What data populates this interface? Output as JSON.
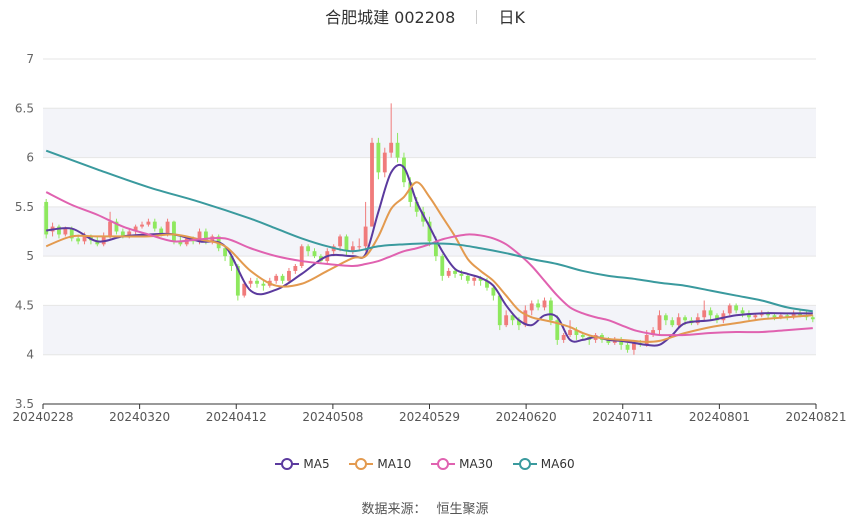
{
  "header": {
    "stock_name": "合肥城建",
    "stock_code": "002208",
    "period": "日K"
  },
  "footer": {
    "source_label": "数据来源：",
    "source_name": "恒生聚源"
  },
  "colors": {
    "up": "#f07b7b",
    "down": "#8ee85e",
    "ma5": "#5b3a9e",
    "ma10": "#e39a4f",
    "ma30": "#e062b0",
    "ma60": "#3a9a9e",
    "band": "#f3f4f9",
    "axis": "#333333"
  },
  "chart_data": {
    "type": "candlestick",
    "title": "合肥城建 002208 日K",
    "ylim": [
      3.5,
      7
    ],
    "yticks": [
      "3.5",
      "4",
      "4.5",
      "5",
      "5.5",
      "6",
      "6.5",
      "7"
    ],
    "xticks": [
      "20240228",
      "20240320",
      "20240412",
      "20240508",
      "20240529",
      "20240620",
      "20240711",
      "20240801",
      "20240821"
    ],
    "legend": [
      "MA5",
      "MA10",
      "MA30",
      "MA60"
    ],
    "legend_position": "bottom",
    "num_days": 121,
    "candles": [
      [
        5.55,
        5.22,
        5.58,
        5.18
      ],
      [
        5.25,
        5.3,
        5.34,
        5.2
      ],
      [
        5.3,
        5.22,
        5.32,
        5.18
      ],
      [
        5.22,
        5.28,
        5.3,
        5.2
      ],
      [
        5.28,
        5.18,
        5.3,
        5.15
      ],
      [
        5.18,
        5.15,
        5.22,
        5.12
      ],
      [
        5.15,
        5.2,
        5.24,
        5.12
      ],
      [
        5.2,
        5.16,
        5.22,
        5.12
      ],
      [
        5.16,
        5.12,
        5.2,
        5.1
      ],
      [
        5.12,
        5.2,
        5.24,
        5.1
      ],
      [
        5.2,
        5.35,
        5.45,
        5.18
      ],
      [
        5.35,
        5.25,
        5.38,
        5.22
      ],
      [
        5.25,
        5.2,
        5.28,
        5.18
      ],
      [
        5.2,
        5.25,
        5.28,
        5.18
      ],
      [
        5.25,
        5.3,
        5.32,
        5.22
      ],
      [
        5.3,
        5.32,
        5.35,
        5.28
      ],
      [
        5.32,
        5.35,
        5.38,
        5.3
      ],
      [
        5.35,
        5.28,
        5.38,
        5.25
      ],
      [
        5.28,
        5.22,
        5.3,
        5.2
      ],
      [
        5.22,
        5.35,
        5.38,
        5.2
      ],
      [
        5.35,
        5.15,
        5.36,
        5.12
      ],
      [
        5.15,
        5.12,
        5.2,
        5.1
      ],
      [
        5.12,
        5.18,
        5.2,
        5.1
      ],
      [
        5.18,
        5.15,
        5.2,
        5.12
      ],
      [
        5.15,
        5.25,
        5.28,
        5.12
      ],
      [
        5.25,
        5.15,
        5.28,
        5.12
      ],
      [
        5.15,
        5.2,
        5.22,
        5.12
      ],
      [
        5.2,
        5.08,
        5.22,
        5.05
      ],
      [
        5.08,
        5.0,
        5.1,
        4.95
      ],
      [
        5.0,
        4.9,
        5.02,
        4.85
      ],
      [
        4.9,
        4.6,
        4.92,
        4.55
      ],
      [
        4.6,
        4.72,
        4.75,
        4.58
      ],
      [
        4.72,
        4.75,
        4.78,
        4.68
      ],
      [
        4.75,
        4.72,
        4.78,
        4.68
      ],
      [
        4.72,
        4.7,
        4.75,
        4.65
      ],
      [
        4.7,
        4.75,
        4.78,
        4.68
      ],
      [
        4.75,
        4.8,
        4.82,
        4.72
      ],
      [
        4.8,
        4.75,
        4.82,
        4.72
      ],
      [
        4.75,
        4.85,
        4.88,
        4.72
      ],
      [
        4.85,
        4.9,
        4.92,
        4.82
      ],
      [
        4.9,
        5.1,
        5.12,
        4.88
      ],
      [
        5.1,
        5.05,
        5.12,
        5.0
      ],
      [
        5.05,
        5.0,
        5.08,
        4.98
      ],
      [
        5.0,
        4.95,
        5.02,
        4.92
      ],
      [
        4.95,
        5.05,
        5.08,
        4.92
      ],
      [
        5.05,
        5.1,
        5.12,
        5.0
      ],
      [
        5.1,
        5.2,
        5.22,
        5.05
      ],
      [
        5.2,
        5.05,
        5.22,
        5.0
      ],
      [
        5.05,
        5.1,
        5.15,
        5.02
      ],
      [
        5.1,
        5.1,
        5.18,
        5.05
      ],
      [
        5.1,
        5.3,
        5.55,
        5.05
      ],
      [
        5.3,
        6.15,
        6.2,
        5.3
      ],
      [
        6.15,
        5.85,
        6.2,
        5.78
      ],
      [
        5.85,
        6.05,
        6.1,
        5.8
      ],
      [
        6.05,
        6.15,
        6.55,
        6.0
      ],
      [
        6.15,
        6.0,
        6.25,
        5.95
      ],
      [
        6.0,
        5.75,
        6.05,
        5.7
      ],
      [
        5.75,
        5.55,
        5.8,
        5.5
      ],
      [
        5.55,
        5.45,
        5.6,
        5.4
      ],
      [
        5.45,
        5.35,
        5.5,
        5.3
      ],
      [
        5.35,
        5.15,
        5.4,
        5.1
      ],
      [
        5.15,
        5.0,
        5.2,
        4.95
      ],
      [
        5.0,
        4.8,
        5.02,
        4.75
      ],
      [
        4.8,
        4.85,
        4.88,
        4.78
      ],
      [
        4.85,
        4.82,
        4.88,
        4.78
      ],
      [
        4.82,
        4.8,
        4.86,
        4.76
      ],
      [
        4.8,
        4.75,
        4.82,
        4.72
      ],
      [
        4.75,
        4.78,
        4.8,
        4.7
      ],
      [
        4.78,
        4.75,
        4.8,
        4.7
      ],
      [
        4.75,
        4.68,
        4.78,
        4.65
      ],
      [
        4.68,
        4.6,
        4.7,
        4.55
      ],
      [
        4.6,
        4.3,
        4.62,
        4.25
      ],
      [
        4.3,
        4.4,
        4.45,
        4.28
      ],
      [
        4.4,
        4.35,
        4.42,
        4.3
      ],
      [
        4.35,
        4.3,
        4.38,
        4.25
      ],
      [
        4.3,
        4.45,
        4.5,
        4.28
      ],
      [
        4.45,
        4.52,
        4.55,
        4.4
      ],
      [
        4.52,
        4.48,
        4.56,
        4.45
      ],
      [
        4.48,
        4.55,
        4.58,
        4.45
      ],
      [
        4.55,
        4.35,
        4.58,
        4.3
      ],
      [
        4.35,
        4.15,
        4.4,
        4.1
      ],
      [
        4.15,
        4.2,
        4.22,
        4.12
      ],
      [
        4.2,
        4.25,
        4.35,
        4.18
      ],
      [
        4.25,
        4.2,
        4.28,
        4.15
      ],
      [
        4.2,
        4.18,
        4.22,
        4.15
      ],
      [
        4.18,
        4.15,
        4.2,
        4.1
      ],
      [
        4.15,
        4.2,
        4.22,
        4.12
      ],
      [
        4.2,
        4.15,
        4.22,
        4.12
      ],
      [
        4.15,
        4.12,
        4.18,
        4.1
      ],
      [
        4.12,
        4.15,
        4.18,
        4.1
      ],
      [
        4.15,
        4.1,
        4.18,
        4.05
      ],
      [
        4.1,
        4.05,
        4.12,
        4.02
      ],
      [
        4.05,
        4.12,
        4.15,
        4.0
      ],
      [
        4.12,
        4.1,
        4.15,
        4.08
      ],
      [
        4.1,
        4.2,
        4.25,
        4.08
      ],
      [
        4.2,
        4.25,
        4.28,
        4.18
      ],
      [
        4.25,
        4.4,
        4.45,
        4.2
      ],
      [
        4.4,
        4.35,
        4.42,
        4.3
      ],
      [
        4.35,
        4.3,
        4.38,
        4.28
      ],
      [
        4.3,
        4.38,
        4.42,
        4.28
      ],
      [
        4.38,
        4.35,
        4.4,
        4.3
      ],
      [
        4.35,
        4.32,
        4.38,
        4.3
      ],
      [
        4.32,
        4.38,
        4.42,
        4.3
      ],
      [
        4.38,
        4.45,
        4.55,
        4.35
      ],
      [
        4.45,
        4.4,
        4.48,
        4.35
      ],
      [
        4.4,
        4.35,
        4.42,
        4.32
      ],
      [
        4.35,
        4.42,
        4.45,
        4.32
      ],
      [
        4.42,
        4.5,
        4.52,
        4.4
      ],
      [
        4.5,
        4.45,
        4.52,
        4.42
      ],
      [
        4.45,
        4.42,
        4.48,
        4.38
      ],
      [
        4.42,
        4.38,
        4.45,
        4.35
      ],
      [
        4.38,
        4.4,
        4.42,
        4.35
      ],
      [
        4.4,
        4.42,
        4.45,
        4.38
      ],
      [
        4.42,
        4.4,
        4.44,
        4.36
      ],
      [
        4.4,
        4.38,
        4.42,
        4.35
      ],
      [
        4.38,
        4.4,
        4.42,
        4.36
      ],
      [
        4.4,
        4.38,
        4.42,
        4.35
      ],
      [
        4.38,
        4.42,
        4.45,
        4.36
      ],
      [
        4.42,
        4.4,
        4.45,
        4.38
      ],
      [
        4.4,
        4.38,
        4.44,
        4.35
      ],
      [
        4.38,
        4.36,
        4.4,
        4.33
      ]
    ],
    "series": [
      {
        "name": "MA5",
        "points": [
          [
            0,
            5.26
          ],
          [
            4,
            5.28
          ],
          [
            8,
            5.15
          ],
          [
            12,
            5.2
          ],
          [
            16,
            5.22
          ],
          [
            20,
            5.22
          ],
          [
            24,
            5.15
          ],
          [
            28,
            5.1
          ],
          [
            32,
            4.65
          ],
          [
            36,
            4.66
          ],
          [
            40,
            4.82
          ],
          [
            44,
            5.0
          ],
          [
            48,
            5.0
          ],
          [
            50,
            5.02
          ],
          [
            52,
            5.45
          ],
          [
            54,
            5.85
          ],
          [
            56,
            5.9
          ],
          [
            58,
            5.55
          ],
          [
            60,
            5.3
          ],
          [
            62,
            5.05
          ],
          [
            64,
            4.87
          ],
          [
            66,
            4.82
          ],
          [
            68,
            4.78
          ],
          [
            70,
            4.7
          ],
          [
            72,
            4.5
          ],
          [
            74,
            4.35
          ],
          [
            76,
            4.3
          ],
          [
            78,
            4.4
          ],
          [
            80,
            4.38
          ],
          [
            82,
            4.15
          ],
          [
            84,
            4.15
          ],
          [
            86,
            4.18
          ],
          [
            88,
            4.15
          ],
          [
            90,
            4.14
          ],
          [
            92,
            4.12
          ],
          [
            94,
            4.1
          ],
          [
            96,
            4.1
          ],
          [
            98,
            4.2
          ],
          [
            100,
            4.32
          ],
          [
            104,
            4.35
          ],
          [
            108,
            4.4
          ],
          [
            112,
            4.42
          ],
          [
            116,
            4.42
          ],
          [
            120,
            4.42
          ]
        ]
      },
      {
        "name": "MA10",
        "points": [
          [
            0,
            5.1
          ],
          [
            4,
            5.2
          ],
          [
            8,
            5.2
          ],
          [
            12,
            5.2
          ],
          [
            16,
            5.2
          ],
          [
            20,
            5.22
          ],
          [
            24,
            5.17
          ],
          [
            28,
            5.1
          ],
          [
            32,
            4.85
          ],
          [
            36,
            4.7
          ],
          [
            40,
            4.72
          ],
          [
            44,
            4.85
          ],
          [
            48,
            4.98
          ],
          [
            50,
            5.0
          ],
          [
            52,
            5.2
          ],
          [
            54,
            5.48
          ],
          [
            56,
            5.6
          ],
          [
            58,
            5.75
          ],
          [
            60,
            5.6
          ],
          [
            62,
            5.4
          ],
          [
            64,
            5.2
          ],
          [
            66,
            4.97
          ],
          [
            68,
            4.85
          ],
          [
            70,
            4.75
          ],
          [
            72,
            4.6
          ],
          [
            74,
            4.45
          ],
          [
            76,
            4.38
          ],
          [
            78,
            4.35
          ],
          [
            80,
            4.32
          ],
          [
            82,
            4.28
          ],
          [
            84,
            4.22
          ],
          [
            86,
            4.18
          ],
          [
            88,
            4.16
          ],
          [
            90,
            4.15
          ],
          [
            92,
            4.14
          ],
          [
            94,
            4.13
          ],
          [
            96,
            4.14
          ],
          [
            98,
            4.18
          ],
          [
            100,
            4.22
          ],
          [
            104,
            4.28
          ],
          [
            108,
            4.32
          ],
          [
            112,
            4.36
          ],
          [
            116,
            4.38
          ],
          [
            120,
            4.4
          ]
        ]
      },
      {
        "name": "MA30",
        "points": [
          [
            0,
            5.65
          ],
          [
            4,
            5.52
          ],
          [
            8,
            5.42
          ],
          [
            12,
            5.3
          ],
          [
            16,
            5.22
          ],
          [
            20,
            5.15
          ],
          [
            24,
            5.17
          ],
          [
            28,
            5.18
          ],
          [
            32,
            5.08
          ],
          [
            36,
            5.0
          ],
          [
            40,
            4.95
          ],
          [
            44,
            4.92
          ],
          [
            48,
            4.9
          ],
          [
            50,
            4.92
          ],
          [
            52,
            4.95
          ],
          [
            54,
            5.0
          ],
          [
            56,
            5.05
          ],
          [
            58,
            5.08
          ],
          [
            60,
            5.12
          ],
          [
            62,
            5.17
          ],
          [
            64,
            5.2
          ],
          [
            66,
            5.22
          ],
          [
            68,
            5.21
          ],
          [
            70,
            5.18
          ],
          [
            72,
            5.12
          ],
          [
            74,
            5.02
          ],
          [
            76,
            4.9
          ],
          [
            78,
            4.75
          ],
          [
            80,
            4.6
          ],
          [
            82,
            4.48
          ],
          [
            84,
            4.42
          ],
          [
            86,
            4.38
          ],
          [
            88,
            4.35
          ],
          [
            90,
            4.3
          ],
          [
            92,
            4.25
          ],
          [
            94,
            4.22
          ],
          [
            96,
            4.2
          ],
          [
            98,
            4.2
          ],
          [
            100,
            4.2
          ],
          [
            104,
            4.22
          ],
          [
            108,
            4.23
          ],
          [
            112,
            4.23
          ],
          [
            116,
            4.25
          ],
          [
            120,
            4.27
          ]
        ]
      },
      {
        "name": "MA60",
        "points": [
          [
            0,
            6.07
          ],
          [
            8,
            5.88
          ],
          [
            16,
            5.7
          ],
          [
            24,
            5.55
          ],
          [
            32,
            5.38
          ],
          [
            36,
            5.28
          ],
          [
            40,
            5.18
          ],
          [
            44,
            5.1
          ],
          [
            48,
            5.05
          ],
          [
            52,
            5.1
          ],
          [
            56,
            5.12
          ],
          [
            60,
            5.13
          ],
          [
            64,
            5.12
          ],
          [
            68,
            5.08
          ],
          [
            72,
            5.03
          ],
          [
            76,
            4.97
          ],
          [
            80,
            4.92
          ],
          [
            84,
            4.85
          ],
          [
            88,
            4.8
          ],
          [
            92,
            4.77
          ],
          [
            96,
            4.73
          ],
          [
            100,
            4.7
          ],
          [
            104,
            4.65
          ],
          [
            108,
            4.6
          ],
          [
            112,
            4.55
          ],
          [
            116,
            4.48
          ],
          [
            120,
            4.44
          ]
        ]
      }
    ]
  }
}
